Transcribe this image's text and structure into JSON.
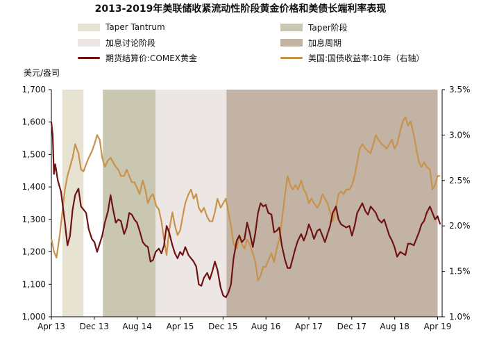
{
  "chart_data": {
    "type": "line",
    "title": "2013-2019年美联储收紧流动性阶段黄金价格和美债长端利率表现",
    "ylabel": "美元/盎司",
    "ylim": [
      1000,
      1700
    ],
    "y2lim": [
      1.0,
      3.5
    ],
    "x_range": [
      "2013-04",
      "2019-04"
    ],
    "x_tick_labels": [
      "Apr 13",
      "Dec 13",
      "Aug 14",
      "Apr 15",
      "Dec 15",
      "Aug 16",
      "Apr 17",
      "Dec 17",
      "Aug 18",
      "Apr 19"
    ],
    "y_tick_labels": [
      "1,000",
      "1,100",
      "1,200",
      "1,300",
      "1,400",
      "1,500",
      "1,600",
      "1,700"
    ],
    "y2_tick_labels": [
      "1.0%",
      "1.5%",
      "2.0%",
      "2.5%",
      "3.0%",
      "3.5%"
    ],
    "phases": [
      {
        "name": "Taper Tantrum",
        "start": 2013.42,
        "end": 2013.75,
        "color": "#e7e3d3"
      },
      {
        "name": "Taper阶段",
        "start": 2014.05,
        "end": 2014.87,
        "color": "#c9c7b1"
      },
      {
        "name": "加息讨论阶段",
        "start": 2014.87,
        "end": 2015.97,
        "color": "#ece7e4"
      },
      {
        "name": "加息周期",
        "start": 2015.97,
        "end": 2019.25,
        "color": "#c2b3a4"
      }
    ],
    "series": [
      {
        "name": "期货结算价:COMEX黄金",
        "axis": "left",
        "color": "#6e1212",
        "points": [
          [
            2013.25,
            1600
          ],
          [
            2013.27,
            1560
          ],
          [
            2013.29,
            1440
          ],
          [
            2013.31,
            1470
          ],
          [
            2013.35,
            1420
          ],
          [
            2013.4,
            1385
          ],
          [
            2013.46,
            1290
          ],
          [
            2013.5,
            1220
          ],
          [
            2013.54,
            1250
          ],
          [
            2013.58,
            1330
          ],
          [
            2013.62,
            1375
          ],
          [
            2013.67,
            1395
          ],
          [
            2013.71,
            1340
          ],
          [
            2013.75,
            1330
          ],
          [
            2013.79,
            1320
          ],
          [
            2013.83,
            1270
          ],
          [
            2013.88,
            1240
          ],
          [
            2013.92,
            1230
          ],
          [
            2013.96,
            1200
          ],
          [
            2014.0,
            1225
          ],
          [
            2014.04,
            1250
          ],
          [
            2014.08,
            1290
          ],
          [
            2014.13,
            1325
          ],
          [
            2014.17,
            1375
          ],
          [
            2014.21,
            1330
          ],
          [
            2014.25,
            1290
          ],
          [
            2014.29,
            1300
          ],
          [
            2014.33,
            1295
          ],
          [
            2014.38,
            1255
          ],
          [
            2014.42,
            1275
          ],
          [
            2014.46,
            1320
          ],
          [
            2014.5,
            1315
          ],
          [
            2014.54,
            1300
          ],
          [
            2014.58,
            1290
          ],
          [
            2014.62,
            1265
          ],
          [
            2014.67,
            1230
          ],
          [
            2014.71,
            1220
          ],
          [
            2014.75,
            1215
          ],
          [
            2014.79,
            1170
          ],
          [
            2014.83,
            1175
          ],
          [
            2014.87,
            1200
          ],
          [
            2014.92,
            1210
          ],
          [
            2014.96,
            1195
          ],
          [
            2015.0,
            1220
          ],
          [
            2015.04,
            1280
          ],
          [
            2015.08,
            1260
          ],
          [
            2015.13,
            1220
          ],
          [
            2015.17,
            1195
          ],
          [
            2015.21,
            1180
          ],
          [
            2015.25,
            1200
          ],
          [
            2015.29,
            1190
          ],
          [
            2015.33,
            1215
          ],
          [
            2015.38,
            1190
          ],
          [
            2015.42,
            1180
          ],
          [
            2015.46,
            1170
          ],
          [
            2015.5,
            1155
          ],
          [
            2015.54,
            1100
          ],
          [
            2015.58,
            1095
          ],
          [
            2015.62,
            1120
          ],
          [
            2015.67,
            1135
          ],
          [
            2015.71,
            1115
          ],
          [
            2015.75,
            1140
          ],
          [
            2015.79,
            1170
          ],
          [
            2015.83,
            1145
          ],
          [
            2015.88,
            1090
          ],
          [
            2015.92,
            1065
          ],
          [
            2015.96,
            1060
          ],
          [
            2016.0,
            1075
          ],
          [
            2016.04,
            1100
          ],
          [
            2016.08,
            1180
          ],
          [
            2016.13,
            1235
          ],
          [
            2016.17,
            1250
          ],
          [
            2016.21,
            1230
          ],
          [
            2016.25,
            1240
          ],
          [
            2016.29,
            1290
          ],
          [
            2016.33,
            1260
          ],
          [
            2016.38,
            1215
          ],
          [
            2016.42,
            1260
          ],
          [
            2016.46,
            1320
          ],
          [
            2016.5,
            1350
          ],
          [
            2016.54,
            1340
          ],
          [
            2016.58,
            1345
          ],
          [
            2016.62,
            1320
          ],
          [
            2016.67,
            1315
          ],
          [
            2016.71,
            1260
          ],
          [
            2016.75,
            1265
          ],
          [
            2016.79,
            1275
          ],
          [
            2016.83,
            1220
          ],
          [
            2016.88,
            1175
          ],
          [
            2016.92,
            1150
          ],
          [
            2016.96,
            1150
          ],
          [
            2017.0,
            1180
          ],
          [
            2017.04,
            1210
          ],
          [
            2017.08,
            1235
          ],
          [
            2017.13,
            1255
          ],
          [
            2017.17,
            1235
          ],
          [
            2017.21,
            1255
          ],
          [
            2017.25,
            1285
          ],
          [
            2017.29,
            1265
          ],
          [
            2017.33,
            1240
          ],
          [
            2017.38,
            1265
          ],
          [
            2017.42,
            1270
          ],
          [
            2017.46,
            1250
          ],
          [
            2017.5,
            1230
          ],
          [
            2017.54,
            1255
          ],
          [
            2017.58,
            1280
          ],
          [
            2017.62,
            1320
          ],
          [
            2017.67,
            1340
          ],
          [
            2017.71,
            1300
          ],
          [
            2017.75,
            1285
          ],
          [
            2017.79,
            1280
          ],
          [
            2017.83,
            1275
          ],
          [
            2017.88,
            1280
          ],
          [
            2017.92,
            1250
          ],
          [
            2017.96,
            1280
          ],
          [
            2018.0,
            1320
          ],
          [
            2018.04,
            1335
          ],
          [
            2018.08,
            1350
          ],
          [
            2018.13,
            1325
          ],
          [
            2018.17,
            1315
          ],
          [
            2018.21,
            1340
          ],
          [
            2018.25,
            1330
          ],
          [
            2018.29,
            1320
          ],
          [
            2018.33,
            1300
          ],
          [
            2018.38,
            1290
          ],
          [
            2018.42,
            1300
          ],
          [
            2018.46,
            1275
          ],
          [
            2018.5,
            1250
          ],
          [
            2018.54,
            1235
          ],
          [
            2018.58,
            1215
          ],
          [
            2018.62,
            1185
          ],
          [
            2018.67,
            1200
          ],
          [
            2018.71,
            1195
          ],
          [
            2018.75,
            1190
          ],
          [
            2018.79,
            1225
          ],
          [
            2018.83,
            1225
          ],
          [
            2018.88,
            1220
          ],
          [
            2018.92,
            1240
          ],
          [
            2018.96,
            1260
          ],
          [
            2019.0,
            1285
          ],
          [
            2019.04,
            1295
          ],
          [
            2019.08,
            1320
          ],
          [
            2019.13,
            1340
          ],
          [
            2019.17,
            1320
          ],
          [
            2019.21,
            1300
          ],
          [
            2019.25,
            1310
          ],
          [
            2019.29,
            1285
          ]
        ]
      },
      {
        "name": "美国:国债收益率:10年（右轴）",
        "axis": "right",
        "color": "#c9924a",
        "points": [
          [
            2013.25,
            1.86
          ],
          [
            2013.29,
            1.72
          ],
          [
            2013.33,
            1.65
          ],
          [
            2013.38,
            1.9
          ],
          [
            2013.42,
            2.15
          ],
          [
            2013.46,
            2.4
          ],
          [
            2013.5,
            2.55
          ],
          [
            2013.54,
            2.65
          ],
          [
            2013.58,
            2.75
          ],
          [
            2013.62,
            2.9
          ],
          [
            2013.67,
            2.8
          ],
          [
            2013.71,
            2.62
          ],
          [
            2013.75,
            2.6
          ],
          [
            2013.79,
            2.68
          ],
          [
            2013.83,
            2.75
          ],
          [
            2013.88,
            2.82
          ],
          [
            2013.92,
            2.9
          ],
          [
            2013.96,
            3.0
          ],
          [
            2014.0,
            2.95
          ],
          [
            2014.04,
            2.75
          ],
          [
            2014.08,
            2.65
          ],
          [
            2014.13,
            2.72
          ],
          [
            2014.17,
            2.75
          ],
          [
            2014.21,
            2.7
          ],
          [
            2014.25,
            2.65
          ],
          [
            2014.29,
            2.62
          ],
          [
            2014.33,
            2.55
          ],
          [
            2014.38,
            2.55
          ],
          [
            2014.42,
            2.62
          ],
          [
            2014.46,
            2.55
          ],
          [
            2014.5,
            2.48
          ],
          [
            2014.54,
            2.48
          ],
          [
            2014.58,
            2.42
          ],
          [
            2014.62,
            2.35
          ],
          [
            2014.67,
            2.5
          ],
          [
            2014.71,
            2.4
          ],
          [
            2014.75,
            2.25
          ],
          [
            2014.79,
            2.32
          ],
          [
            2014.83,
            2.35
          ],
          [
            2014.88,
            2.22
          ],
          [
            2014.92,
            2.18
          ],
          [
            2014.96,
            2.05
          ],
          [
            2015.0,
            1.85
          ],
          [
            2015.04,
            1.68
          ],
          [
            2015.08,
            1.95
          ],
          [
            2015.13,
            2.15
          ],
          [
            2015.17,
            2.0
          ],
          [
            2015.21,
            1.9
          ],
          [
            2015.25,
            1.95
          ],
          [
            2015.29,
            2.1
          ],
          [
            2015.33,
            2.25
          ],
          [
            2015.38,
            2.35
          ],
          [
            2015.42,
            2.4
          ],
          [
            2015.46,
            2.3
          ],
          [
            2015.5,
            2.35
          ],
          [
            2015.54,
            2.2
          ],
          [
            2015.58,
            2.15
          ],
          [
            2015.62,
            2.2
          ],
          [
            2015.67,
            2.1
          ],
          [
            2015.71,
            2.05
          ],
          [
            2015.75,
            2.05
          ],
          [
            2015.79,
            2.15
          ],
          [
            2015.83,
            2.3
          ],
          [
            2015.88,
            2.2
          ],
          [
            2015.92,
            2.25
          ],
          [
            2015.96,
            2.3
          ],
          [
            2016.0,
            2.15
          ],
          [
            2016.04,
            2.0
          ],
          [
            2016.08,
            1.8
          ],
          [
            2016.13,
            1.75
          ],
          [
            2016.17,
            1.9
          ],
          [
            2016.21,
            1.8
          ],
          [
            2016.25,
            1.75
          ],
          [
            2016.29,
            1.85
          ],
          [
            2016.33,
            1.8
          ],
          [
            2016.38,
            1.7
          ],
          [
            2016.42,
            1.6
          ],
          [
            2016.46,
            1.4
          ],
          [
            2016.5,
            1.45
          ],
          [
            2016.54,
            1.55
          ],
          [
            2016.58,
            1.55
          ],
          [
            2016.62,
            1.62
          ],
          [
            2016.67,
            1.7
          ],
          [
            2016.71,
            1.6
          ],
          [
            2016.75,
            1.75
          ],
          [
            2016.79,
            1.85
          ],
          [
            2016.83,
            2.05
          ],
          [
            2016.88,
            2.35
          ],
          [
            2016.92,
            2.55
          ],
          [
            2016.96,
            2.45
          ],
          [
            2017.0,
            2.4
          ],
          [
            2017.04,
            2.45
          ],
          [
            2017.08,
            2.4
          ],
          [
            2017.13,
            2.5
          ],
          [
            2017.17,
            2.4
          ],
          [
            2017.21,
            2.35
          ],
          [
            2017.25,
            2.25
          ],
          [
            2017.29,
            2.3
          ],
          [
            2017.33,
            2.25
          ],
          [
            2017.38,
            2.2
          ],
          [
            2017.42,
            2.25
          ],
          [
            2017.46,
            2.35
          ],
          [
            2017.5,
            2.3
          ],
          [
            2017.54,
            2.25
          ],
          [
            2017.58,
            2.15
          ],
          [
            2017.62,
            2.05
          ],
          [
            2017.67,
            2.2
          ],
          [
            2017.71,
            2.35
          ],
          [
            2017.75,
            2.38
          ],
          [
            2017.79,
            2.35
          ],
          [
            2017.83,
            2.4
          ],
          [
            2017.88,
            2.4
          ],
          [
            2017.92,
            2.45
          ],
          [
            2017.96,
            2.55
          ],
          [
            2018.0,
            2.7
          ],
          [
            2018.04,
            2.85
          ],
          [
            2018.08,
            2.9
          ],
          [
            2018.13,
            2.85
          ],
          [
            2018.17,
            2.82
          ],
          [
            2018.21,
            2.8
          ],
          [
            2018.25,
            2.9
          ],
          [
            2018.29,
            3.0
          ],
          [
            2018.33,
            2.95
          ],
          [
            2018.38,
            2.9
          ],
          [
            2018.42,
            2.88
          ],
          [
            2018.46,
            2.85
          ],
          [
            2018.5,
            2.9
          ],
          [
            2018.54,
            2.95
          ],
          [
            2018.58,
            2.85
          ],
          [
            2018.62,
            2.9
          ],
          [
            2018.67,
            3.05
          ],
          [
            2018.71,
            3.15
          ],
          [
            2018.75,
            3.2
          ],
          [
            2018.79,
            3.1
          ],
          [
            2018.83,
            3.15
          ],
          [
            2018.88,
            3.0
          ],
          [
            2018.92,
            2.85
          ],
          [
            2018.96,
            2.7
          ],
          [
            2019.0,
            2.65
          ],
          [
            2019.04,
            2.7
          ],
          [
            2019.08,
            2.65
          ],
          [
            2019.13,
            2.62
          ],
          [
            2019.17,
            2.4
          ],
          [
            2019.21,
            2.45
          ],
          [
            2019.25,
            2.55
          ],
          [
            2019.29,
            2.55
          ]
        ]
      }
    ]
  }
}
